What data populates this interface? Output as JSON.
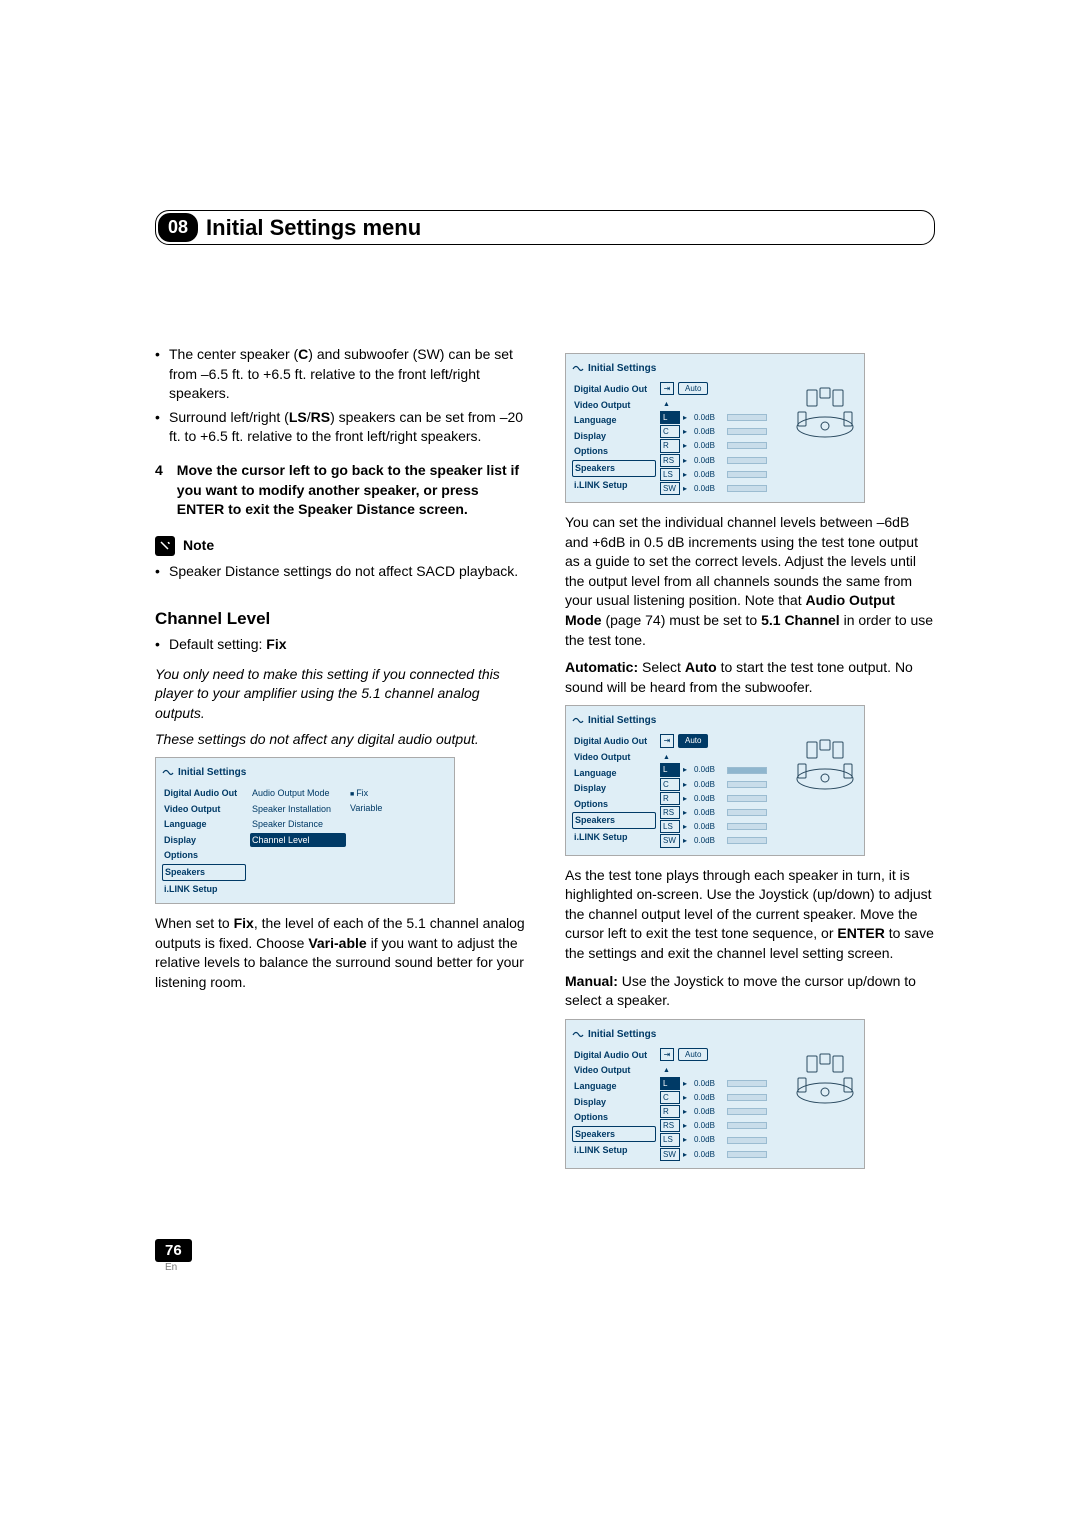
{
  "chapter": {
    "num": "08",
    "title": "Initial Settings menu"
  },
  "left": {
    "bullets": [
      {
        "pre": "The center speaker (",
        "b1": "C",
        "mid": ") and subwoofer (SW) can be set from –6.5 ft. to +6.5 ft. relative to the front left/right speakers."
      },
      {
        "pre": "Surround left/right (",
        "b1": "LS",
        "slash": "/",
        "b2": "RS",
        "mid": ") speakers can be set from –20 ft. to +6.5 ft. relative to the front left/right speakers."
      }
    ],
    "step4": {
      "num": "4",
      "text": "Move the cursor left to go back to the speaker list if you want to modify another speaker, or press ENTER to exit the Speaker Distance screen."
    },
    "note_label": "Note",
    "note_text": "Speaker Distance settings do not affect SACD playback.",
    "section": "Channel Level",
    "default_pre": "Default setting: ",
    "default_val": "Fix",
    "italic1": "You only need to make this setting if you connected this player to your amplifier using the 5.1 channel analog outputs.",
    "italic2": "These settings do not affect any digital audio output.",
    "minipanel": {
      "title": "Initial Settings",
      "side": [
        "Digital Audio Out",
        "Video Output",
        "Language",
        "Display",
        "Options",
        "Speakers",
        "i.LINK Setup"
      ],
      "side_sel": 5,
      "mid": [
        "Audio Output Mode",
        "Speaker Installation",
        "Speaker Distance",
        "Channel Level"
      ],
      "mid_sel": 3,
      "right": [
        "Fix",
        "Variable"
      ],
      "right_sel": 0
    },
    "para_fix_1": "When set to ",
    "para_fix_b1": "Fix",
    "para_fix_2": ", the level of each of the 5.1 channel analog outputs is fixed. Choose ",
    "para_fix_b2": "Vari-able",
    "para_fix_3": " if you want to adjust the relative levels to balance the surround sound better for your listening room."
  },
  "right": {
    "panel_top": {
      "title": "Initial Settings",
      "side": [
        "Digital Audio Out",
        "Video Output",
        "Language",
        "Display",
        "Options",
        "Speakers",
        "i.LINK Setup"
      ],
      "side_sel": 5,
      "auto": "Auto",
      "rows": [
        {
          "ch": "L",
          "val": "0.0dB",
          "sel": true
        },
        {
          "ch": "C",
          "val": "0.0dB"
        },
        {
          "ch": "R",
          "val": "0.0dB"
        },
        {
          "ch": "RS",
          "val": "0.0dB"
        },
        {
          "ch": "LS",
          "val": "0.0dB"
        },
        {
          "ch": "SW",
          "val": "0.0dB"
        }
      ]
    },
    "para1_a": "You can set the individual channel levels between –6dB and +6dB in 0.5 dB increments using the test tone output as a guide to set the correct levels. Adjust the levels until the output level from all channels sounds the same from your usual listening position. Note that ",
    "para1_b": "Audio Output Mode",
    "para1_c": " (page 74) must be set to ",
    "para1_d": "5.1 Channel",
    "para1_e": " in order to use the test tone.",
    "auto_b": "Automatic:",
    "auto_txt_a": " Select ",
    "auto_txt_b": "Auto",
    "auto_txt_c": " to start the test tone output. No sound will be heard from the subwoofer.",
    "panel_mid": {
      "title": "Initial Settings",
      "auto": "Auto",
      "rows": [
        {
          "ch": "L",
          "val": "0.0dB",
          "sel": true,
          "hi": true
        },
        {
          "ch": "C",
          "val": "0.0dB"
        },
        {
          "ch": "R",
          "val": "0.0dB"
        },
        {
          "ch": "RS",
          "val": "0.0dB"
        },
        {
          "ch": "LS",
          "val": "0.0dB"
        },
        {
          "ch": "SW",
          "val": "0.0dB"
        }
      ]
    },
    "para2_a": "As the test tone plays through each speaker in turn, it is highlighted on-screen. Use the Joystick (up/down) to adjust the channel output level of the current speaker. Move the cursor left to exit the test tone sequence, or ",
    "para2_b": "ENTER",
    "para2_c": " to save the settings and exit the channel level setting screen.",
    "man_b": "Manual:",
    "man_txt": " Use the Joystick to move the cursor up/down to select a speaker.",
    "panel_bot": {
      "title": "Initial Settings",
      "auto": "Auto",
      "rows": [
        {
          "ch": "L",
          "val": "0.0dB",
          "sel": true
        },
        {
          "ch": "C",
          "val": "0.0dB"
        },
        {
          "ch": "R",
          "val": "0.0dB"
        },
        {
          "ch": "RS",
          "val": "0.0dB"
        },
        {
          "ch": "LS",
          "val": "0.0dB"
        },
        {
          "ch": "SW",
          "val": "0.0dB"
        }
      ]
    }
  },
  "page": {
    "num": "76",
    "lang": "En"
  },
  "side_items": [
    "Digital Audio Out",
    "Video Output",
    "Language",
    "Display",
    "Options",
    "Speakers",
    "i.LINK Setup"
  ]
}
